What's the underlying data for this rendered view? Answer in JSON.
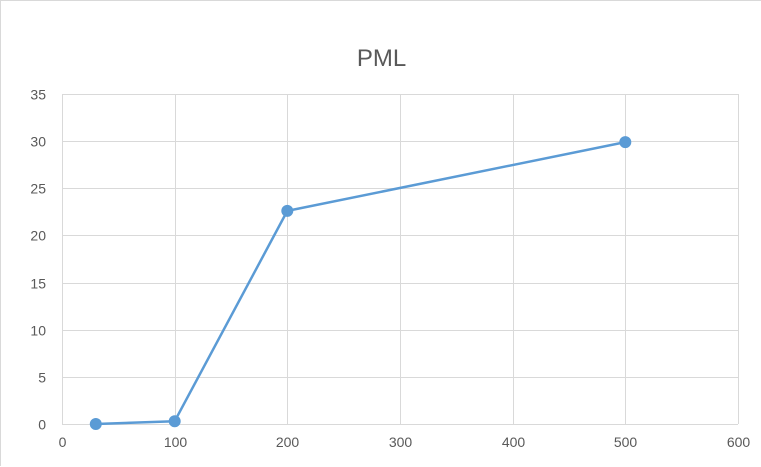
{
  "chart_data": {
    "type": "line",
    "title": "PML",
    "xlabel": "",
    "ylabel": "",
    "xlim": [
      0,
      600
    ],
    "ylim": [
      0,
      35
    ],
    "xticks": [
      0,
      100,
      200,
      300,
      400,
      500,
      600
    ],
    "yticks": [
      0,
      5,
      10,
      15,
      20,
      25,
      30,
      35
    ],
    "grid": true,
    "legend": "none",
    "series": [
      {
        "color": "#5b9bd5",
        "x": [
          30,
          100,
          200,
          500
        ],
        "y": [
          0,
          0.3,
          22.6,
          29.9
        ]
      }
    ]
  }
}
